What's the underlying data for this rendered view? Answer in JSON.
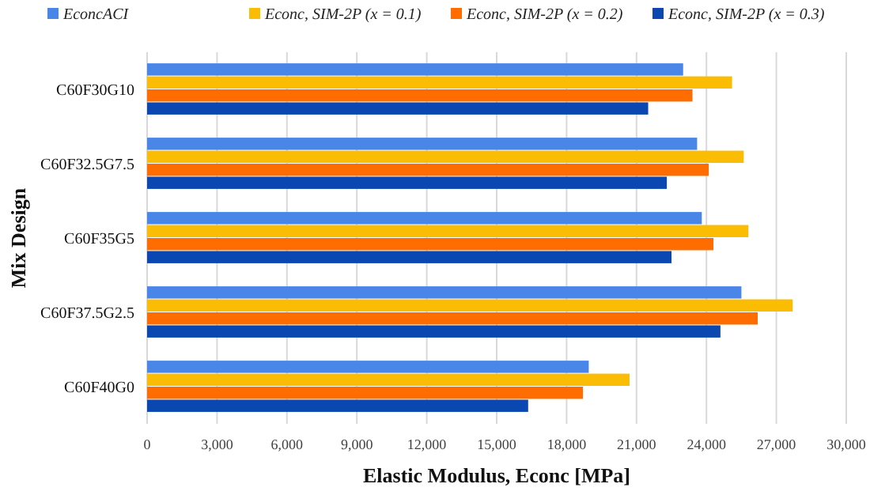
{
  "chart_data": {
    "type": "bar",
    "orientation": "horizontal",
    "xlabel": "Elastic Modulus, Econc [MPa]",
    "ylabel": "Mix Design",
    "categories": [
      "C60F30G10",
      "C60F32.5G7.5",
      "C60F35G5",
      "C60F37.5G2.5",
      "C60F40G0"
    ],
    "series": [
      {
        "name": "EconcACI",
        "color": "#4a86e8",
        "values": [
          23000,
          23600,
          23800,
          25500,
          18950
        ]
      },
      {
        "name": "Econc, SIM-2P (x = 0.1)",
        "color": "#fbbc04",
        "values": [
          25100,
          25600,
          25800,
          27700,
          20700
        ]
      },
      {
        "name": "Econc, SIM-2P (x = 0.2)",
        "color": "#ff6d01",
        "values": [
          23400,
          24100,
          24300,
          26200,
          18700
        ]
      },
      {
        "name": "Econc, SIM-2P (x = 0.3)",
        "color": "#0b47b0",
        "values": [
          21500,
          22300,
          22500,
          24600,
          16350
        ]
      }
    ],
    "xlim": [
      0,
      30000
    ],
    "xticks": [
      {
        "value": 0,
        "label": "0"
      },
      {
        "value": 3000,
        "label": "3,000"
      },
      {
        "value": 6000,
        "label": "6,000"
      },
      {
        "value": 9000,
        "label": "9,000"
      },
      {
        "value": 12000,
        "label": "12,000"
      },
      {
        "value": 15000,
        "label": "15,000"
      },
      {
        "value": 18000,
        "label": "18,000"
      },
      {
        "value": 21000,
        "label": "21,000"
      },
      {
        "value": 24000,
        "label": "24,000"
      },
      {
        "value": 27000,
        "label": "27,000"
      },
      {
        "value": 30000,
        "label": "30,000"
      }
    ],
    "grid": "x",
    "legend": "top"
  }
}
